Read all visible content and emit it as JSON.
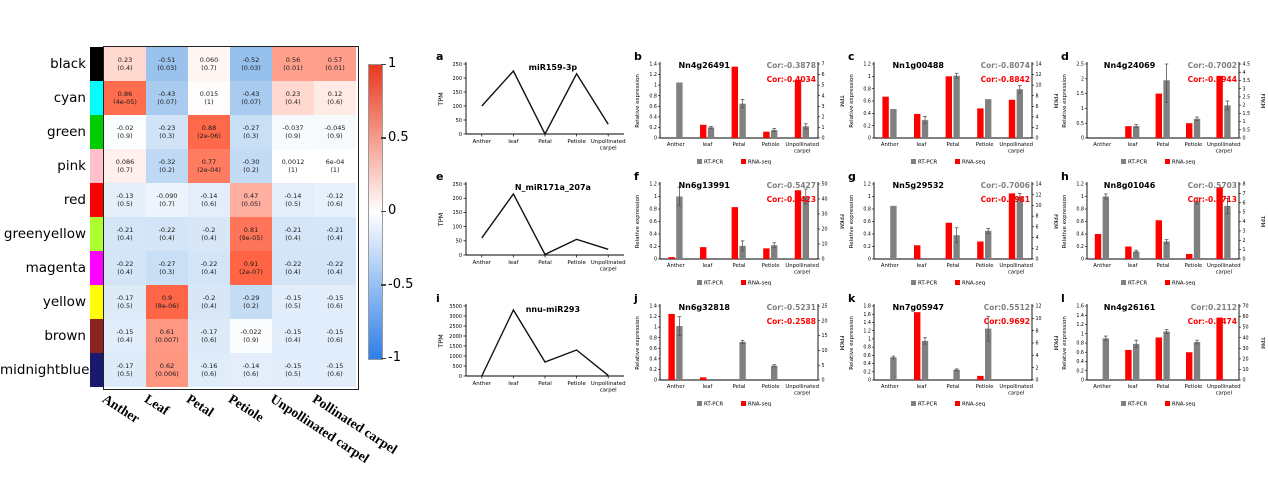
{
  "legend": {
    "items": [
      {
        "label": "RT-PCR",
        "color": "#808080"
      },
      {
        "label": "RNA-seq",
        "color": "#ff0000"
      }
    ]
  },
  "colors": {
    "heatmap_positive": "#f04a26",
    "heatmap_negative": "#3787e1",
    "cor_gray": "#7f7f7f",
    "cor_red": "#ff0000",
    "line": "#111111"
  },
  "chart_data": [
    {
      "type": "heatmap",
      "col_labels": [
        "Anther",
        "Leaf",
        "Petal",
        "Petiole",
        "Unpollinated carpel",
        "Pollinated carpel"
      ],
      "colorbar": {
        "top_color": "#e8391d",
        "mid_color": "#ffffff",
        "bottom_color": "#2e7fe8",
        "ticks": [
          {
            "v": 1,
            "label": "1"
          },
          {
            "v": 0.5,
            "label": "0.5"
          },
          {
            "v": 0,
            "label": "0"
          },
          {
            "v": -0.5,
            "label": "-0.5"
          },
          {
            "v": -1,
            "label": "-1"
          }
        ]
      },
      "rows": [
        {
          "label": "black",
          "color": "#000000",
          "cells": [
            {
              "text": "0.23",
              "p": "(0.4)",
              "v": 0.23
            },
            {
              "text": "-0.51",
              "p": "(0.03)",
              "v": -0.51
            },
            {
              "text": "0.060",
              "p": "(0.7)",
              "v": 0.06
            },
            {
              "text": "-0.52",
              "p": "(0.03)",
              "v": -0.52
            },
            {
              "text": "0.56",
              "p": "(0.01)",
              "v": 0.56
            },
            {
              "text": "0.57",
              "p": "(0.01)",
              "v": 0.57
            }
          ]
        },
        {
          "label": "cyan",
          "color": "#00ffff",
          "cells": [
            {
              "text": "0.86",
              "p": "(4e-05)",
              "v": 0.86
            },
            {
              "text": "-0.43",
              "p": "(0.07)",
              "v": -0.43
            },
            {
              "text": "0.015",
              "p": "(1)",
              "v": 0.015
            },
            {
              "text": "-0.43",
              "p": "(0.07)",
              "v": -0.43
            },
            {
              "text": "0.23",
              "p": "(0.4)",
              "v": 0.23
            },
            {
              "text": "0.12",
              "p": "(0.6)",
              "v": 0.12
            }
          ]
        },
        {
          "label": "green",
          "color": "#00cc00",
          "cells": [
            {
              "text": "-0.02",
              "p": "(0.9)",
              "v": -0.02
            },
            {
              "text": "-0.23",
              "p": "(0.3)",
              "v": -0.23
            },
            {
              "text": "0.88",
              "p": "(2e-06)",
              "v": 0.88
            },
            {
              "text": "-0.27",
              "p": "(0.3)",
              "v": -0.27
            },
            {
              "text": "-0.037",
              "p": "(0.9)",
              "v": -0.037
            },
            {
              "text": "-0.045",
              "p": "(0.9)",
              "v": -0.045
            }
          ]
        },
        {
          "label": "pink",
          "color": "#ffc0cb",
          "cells": [
            {
              "text": "0.086",
              "p": "(0.7)",
              "v": 0.086
            },
            {
              "text": "-0.32",
              "p": "(0.2)",
              "v": -0.32
            },
            {
              "text": "0.77",
              "p": "(2e-04)",
              "v": 0.77
            },
            {
              "text": "-0.30",
              "p": "(0.2)",
              "v": -0.3
            },
            {
              "text": "0.0012",
              "p": "(1)",
              "v": 0.0012
            },
            {
              "text": "6e-04",
              "p": "(1)",
              "v": 0.0006
            }
          ]
        },
        {
          "label": "red",
          "color": "#ff0000",
          "cells": [
            {
              "text": "-0.13",
              "p": "(0.5)",
              "v": -0.13
            },
            {
              "text": "-0.090",
              "p": "(0.7)",
              "v": -0.09
            },
            {
              "text": "-0.14",
              "p": "(0.6)",
              "v": -0.14
            },
            {
              "text": "0.47",
              "p": "(0.05)",
              "v": 0.47
            },
            {
              "text": "-0.14",
              "p": "(0.5)",
              "v": -0.14
            },
            {
              "text": "-0.12",
              "p": "(0.6)",
              "v": -0.12
            }
          ]
        },
        {
          "label": "greenyellow",
          "color": "#adff2f",
          "cells": [
            {
              "text": "-0.21",
              "p": "(0.4)",
              "v": -0.21
            },
            {
              "text": "-0.22",
              "p": "(0.4)",
              "v": -0.22
            },
            {
              "text": "-0.2",
              "p": "(0.4)",
              "v": -0.2
            },
            {
              "text": "0.81",
              "p": "(9e-05)",
              "v": 0.81
            },
            {
              "text": "-0.21",
              "p": "(0.4)",
              "v": -0.21
            },
            {
              "text": "-0.21",
              "p": "(0.4)",
              "v": -0.21
            }
          ]
        },
        {
          "label": "magenta",
          "color": "#ff00ff",
          "cells": [
            {
              "text": "-0.22",
              "p": "(0.4)",
              "v": -0.22
            },
            {
              "text": "-0.27",
              "p": "(0.3)",
              "v": -0.27
            },
            {
              "text": "-0.22",
              "p": "(0.4)",
              "v": -0.22
            },
            {
              "text": "0.91",
              "p": "(2e-07)",
              "v": 0.91
            },
            {
              "text": "-0.22",
              "p": "(0.4)",
              "v": -0.22
            },
            {
              "text": "-0.22",
              "p": "(0.4)",
              "v": -0.22
            }
          ]
        },
        {
          "label": "yellow",
          "color": "#ffff00",
          "cells": [
            {
              "text": "-0.17",
              "p": "(0.5)",
              "v": -0.17
            },
            {
              "text": "0.9",
              "p": "(8e-06)",
              "v": 0.9
            },
            {
              "text": "-0.2",
              "p": "(0.4)",
              "v": -0.2
            },
            {
              "text": "-0.29",
              "p": "(0.2)",
              "v": -0.29
            },
            {
              "text": "-0.15",
              "p": "(0.5)",
              "v": -0.15
            },
            {
              "text": "-0.15",
              "p": "(0.6)",
              "v": -0.15
            }
          ]
        },
        {
          "label": "brown",
          "color": "#8b2323",
          "cells": [
            {
              "text": "-0.15",
              "p": "(0.4)",
              "v": -0.15
            },
            {
              "text": "0.61",
              "p": "(0.007)",
              "v": 0.61
            },
            {
              "text": "-0.17",
              "p": "(0.6)",
              "v": -0.17
            },
            {
              "text": "-0.022",
              "p": "(0.9)",
              "v": -0.022
            },
            {
              "text": "-0.15",
              "p": "(0.4)",
              "v": -0.15
            },
            {
              "text": "-0.15",
              "p": "(0.6)",
              "v": -0.15
            }
          ]
        },
        {
          "label": "midnightblue",
          "color": "#191970",
          "cells": [
            {
              "text": "-0.17",
              "p": "(0.5)",
              "v": -0.17
            },
            {
              "text": "0.62",
              "p": "(0.006)",
              "v": 0.62
            },
            {
              "text": "-0.16",
              "p": "(0.6)",
              "v": -0.16
            },
            {
              "text": "-0.14",
              "p": "(0.6)",
              "v": -0.14
            },
            {
              "text": "-0.15",
              "p": "(0.5)",
              "v": -0.15
            },
            {
              "text": "-0.15",
              "p": "(0.6)",
              "v": -0.15
            }
          ]
        }
      ]
    },
    {
      "panel": "a",
      "type": "line",
      "title": "miR159-3p",
      "ylabel": "TPM",
      "categories": [
        "Anther",
        "leaf",
        "Petal",
        "Petiole",
        "Unpollinated carpel"
      ],
      "values": [
        100,
        225,
        0,
        215,
        35
      ],
      "ylim": [
        0,
        250
      ],
      "ystep": 50
    },
    {
      "panel": "b",
      "type": "bar",
      "title": "Nn4g26491",
      "cor_gray": "Cor:-0.3878",
      "cor_red": "Cor:-0.4034",
      "categories": [
        "Anther",
        "leaf",
        "Petal",
        "Petiole",
        "Unpollinated carpel"
      ],
      "series": [
        {
          "name": "RNA-seq",
          "color": "#ff0000",
          "values": [
            0,
            0.25,
            1.35,
            0.12,
            1.1
          ]
        },
        {
          "name": "RT-PCR",
          "color": "#808080",
          "values": [
            1.05,
            0.2,
            0.65,
            0.15,
            0.22
          ],
          "errors": [
            0,
            0.02,
            0.08,
            0.03,
            0.05
          ]
        }
      ],
      "left_axis": {
        "label": "Relative expression",
        "max": 1.4,
        "step": 0.2
      },
      "right_axis": {
        "label": "TPM",
        "max": 7,
        "step": 1
      }
    },
    {
      "panel": "c",
      "type": "bar",
      "title": "Nn1g00488",
      "cor_gray": "Cor:-0.8074",
      "cor_red": "Cor:-0.8842",
      "categories": [
        "Anther",
        "leaf",
        "Petal",
        "Petiole",
        "Unpollinated carpel"
      ],
      "series": [
        {
          "name": "RNA-seq",
          "color": "#ff0000",
          "values": [
            0.67,
            0.39,
            1.0,
            0.48,
            0.62
          ]
        },
        {
          "name": "RT-PCR",
          "color": "#808080",
          "values": [
            0.47,
            0.29,
            1.01,
            0.63,
            0.79
          ],
          "errors": [
            0,
            0.06,
            0.04,
            0,
            0.06
          ]
        }
      ],
      "left_axis": {
        "label": "Relative expression",
        "max": 1.2,
        "step": 0.2
      },
      "right_axis": {
        "label": "FPKM",
        "max": 14,
        "step": 2
      }
    },
    {
      "panel": "d",
      "type": "bar",
      "title": "Nn4g24069",
      "cor_gray": "Cor:-0.7002",
      "cor_red": "Cor:-0.5944",
      "categories": [
        "Anther",
        "leaf",
        "Petal",
        "Petiole",
        "Unpollinated carpel"
      ],
      "series": [
        {
          "name": "RNA-seq",
          "color": "#ff0000",
          "values": [
            0,
            0.4,
            1.5,
            0.5,
            2.1
          ]
        },
        {
          "name": "RT-PCR",
          "color": "#808080",
          "values": [
            0,
            0.4,
            1.95,
            0.65,
            1.1
          ],
          "errors": [
            0,
            0.05,
            0.75,
            0.06,
            0.15
          ]
        }
      ],
      "left_axis": {
        "label": "Relative expression",
        "max": 2.5,
        "step": 0.5
      },
      "right_axis": {
        "label": "FPKM",
        "max": 4.5,
        "step": 0.5
      }
    },
    {
      "panel": "e",
      "type": "line",
      "title": "N_miR171a_207a",
      "ylabel": "TPM",
      "categories": [
        "Anther",
        "leaf",
        "Petal",
        "Petiole",
        "Unpollinated carpel"
      ],
      "values": [
        60,
        215,
        2,
        55,
        20
      ],
      "ylim": [
        0,
        250
      ],
      "ystep": 50
    },
    {
      "panel": "f",
      "type": "bar",
      "title": "Nn6g13991",
      "cor_gray": "Cor:-0.5427",
      "cor_red": "Cor:-0.5423",
      "categories": [
        "Anther",
        "leaf",
        "Petal",
        "Petiole",
        "Unpollinated carpel"
      ],
      "series": [
        {
          "name": "RNA-seq",
          "color": "#ff0000",
          "values": [
            0.03,
            0.19,
            0.83,
            0.17,
            1.1
          ]
        },
        {
          "name": "RT-PCR",
          "color": "#808080",
          "values": [
            1.0,
            0,
            0.21,
            0.22,
            1.0
          ],
          "errors": [
            0.15,
            0,
            0.08,
            0.04,
            0.12
          ]
        }
      ],
      "left_axis": {
        "label": "Relative expression",
        "max": 1.2,
        "step": 0.2
      },
      "right_axis": {
        "label": "FPKM",
        "max": 50,
        "step": 10
      }
    },
    {
      "panel": "g",
      "type": "bar",
      "title": "Nn5g29532",
      "cor_gray": "Cor:-0.7006",
      "cor_red": "Cor:-0.3981",
      "categories": [
        "Anther",
        "leaf",
        "Petal",
        "Petiole",
        "Unpollinated carpel"
      ],
      "series": [
        {
          "name": "RNA-seq",
          "color": "#ff0000",
          "values": [
            0,
            0.22,
            0.58,
            0.28,
            1.05
          ]
        },
        {
          "name": "RT-PCR",
          "color": "#808080",
          "values": [
            0.85,
            0,
            0.38,
            0.45,
            1.0
          ],
          "errors": [
            0,
            0,
            0.12,
            0.04,
            0.05
          ]
        }
      ],
      "left_axis": {
        "label": "Relative expression",
        "max": 1.2,
        "step": 0.2
      },
      "right_axis": {
        "label": "FPKM",
        "max": 14,
        "step": 2
      }
    },
    {
      "panel": "h",
      "type": "bar",
      "title": "Nn8g01046",
      "cor_gray": "Cor:-0.5703",
      "cor_red": "Cor:-0.5713",
      "categories": [
        "Anther",
        "leaf",
        "Petal",
        "Petiole",
        "Unpollinated carpel"
      ],
      "series": [
        {
          "name": "RNA-seq",
          "color": "#ff0000",
          "values": [
            0.4,
            0.2,
            0.62,
            0.08,
            1.15
          ]
        },
        {
          "name": "RT-PCR",
          "color": "#808080",
          "values": [
            1.0,
            0.12,
            0.28,
            0.93,
            0.85
          ],
          "errors": [
            0.04,
            0.02,
            0.03,
            0.05,
            0.12
          ]
        }
      ],
      "left_axis": {
        "label": "Relative expression",
        "max": 1.2,
        "step": 0.2
      },
      "right_axis": {
        "label": "TPM",
        "max": 8,
        "step": 1
      }
    },
    {
      "panel": "i",
      "type": "line",
      "title": "nnu-miR293",
      "ylabel": "TPM",
      "categories": [
        "Anther",
        "leaf",
        "Petal",
        "Petiole",
        "Unpollinated carpel"
      ],
      "values": [
        0,
        3300,
        700,
        1300,
        30
      ],
      "ylim": [
        0,
        3500
      ],
      "ystep": 500
    },
    {
      "panel": "j",
      "type": "bar",
      "title": "Nn6g32818",
      "cor_gray": "Cor:-0.5231",
      "cor_red": "Cor:-0.2588",
      "categories": [
        "Anther",
        "leaf",
        "Petal",
        "Petiole",
        "Unpollinated carpel"
      ],
      "series": [
        {
          "name": "RNA-seq",
          "color": "#ff0000",
          "values": [
            1.25,
            0.05,
            0,
            0,
            0
          ]
        },
        {
          "name": "RT-PCR",
          "color": "#808080",
          "values": [
            1.02,
            0,
            0.72,
            0.27,
            0
          ],
          "errors": [
            0.18,
            0,
            0.03,
            0.02,
            0
          ]
        }
      ],
      "left_axis": {
        "label": "Relative expression",
        "max": 1.4,
        "step": 0.2
      },
      "right_axis": {
        "label": "FPKM",
        "max": 25,
        "step": 5
      }
    },
    {
      "panel": "k",
      "type": "bar",
      "title": "Nn7g05947",
      "cor_gray": "Cor:0.5512",
      "cor_red": "Cor:0.9692",
      "categories": [
        "Anther",
        "leaf",
        "Petal",
        "Petiole",
        "Unpollinated carpel"
      ],
      "series": [
        {
          "name": "RNA-seq",
          "color": "#ff0000",
          "values": [
            0,
            1.65,
            0,
            0.1,
            0
          ]
        },
        {
          "name": "RT-PCR",
          "color": "#808080",
          "values": [
            0.55,
            0.95,
            0.25,
            1.25,
            0
          ],
          "errors": [
            0.03,
            0.08,
            0.02,
            0.3,
            0
          ]
        }
      ],
      "left_axis": {
        "label": "Relative expression",
        "max": 1.8,
        "step": 0.2
      },
      "right_axis": {
        "label": "FPKM",
        "max": 12,
        "step": 2
      }
    },
    {
      "panel": "l",
      "type": "bar",
      "title": "Nn4g26161",
      "cor_gray": "Cor:0.2112",
      "cor_red": "Cor:-0.1474",
      "categories": [
        "Anther",
        "leaf",
        "Petal",
        "Petiole",
        "Unpollinated carpel"
      ],
      "series": [
        {
          "name": "RNA-seq",
          "color": "#ff0000",
          "values": [
            0,
            0.65,
            0.92,
            0.6,
            1.35
          ]
        },
        {
          "name": "RT-PCR",
          "color": "#808080",
          "values": [
            0.9,
            0.78,
            1.05,
            0.82,
            0
          ],
          "errors": [
            0.05,
            0.08,
            0.04,
            0.04,
            0
          ]
        }
      ],
      "left_axis": {
        "label": "Relative expression",
        "max": 1.6,
        "step": 0.2
      },
      "right_axis": {
        "label": "TPM",
        "max": 70,
        "step": 10
      }
    }
  ]
}
